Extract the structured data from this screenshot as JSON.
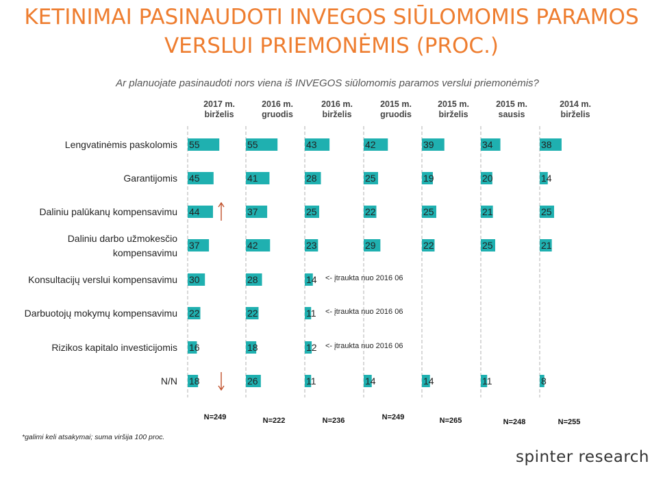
{
  "title_line1": "KETINIMAI PASINAUDOTI INVEGOS SIŪLOMOMIS PARAMOS",
  "title_line2": "VERSLUI PRIEMONĖMIS (PROC.)",
  "subtitle": "Ar planuojate pasinaudoti nors viena iš INVEGOS siūlomomis paramos verslui priemonėmis?",
  "footnote": "*galimi keli atsakymai; suma viršija 100 proc.",
  "logo": "spinter research",
  "colors": {
    "title": "#ee7d2f",
    "bar": "#1fb0b0",
    "arrow": "#c0502a",
    "axis": "#bfbfbf"
  },
  "chart_data": {
    "type": "bar",
    "orientation": "horizontal",
    "categories": [
      [
        "Lengvatinėmis paskolomis"
      ],
      [
        "Garantijomis"
      ],
      [
        "Daliniu palūkanų kompensavimu"
      ],
      [
        "Daliniu darbo užmokesčio",
        "kompensavimu"
      ],
      [
        "Konsultacijų verslui kompensavimu"
      ],
      [
        "Darbuotojų mokymų kompensavimu"
      ],
      [
        "Rizikos kapitalo investicijomis"
      ],
      [
        "N/N"
      ]
    ],
    "series": [
      {
        "name": [
          "2017 m.",
          "birželis"
        ],
        "n": "N=249",
        "values": [
          55,
          45,
          44,
          37,
          30,
          22,
          16,
          18
        ]
      },
      {
        "name": [
          "2016 m.",
          "gruodis"
        ],
        "n": "N=222",
        "values": [
          55,
          41,
          37,
          42,
          28,
          22,
          18,
          26
        ]
      },
      {
        "name": [
          "2016 m.",
          "birželis"
        ],
        "n": "N=236",
        "values": [
          43,
          28,
          25,
          23,
          14,
          11,
          12,
          11
        ]
      },
      {
        "name": [
          "2015 m.",
          "gruodis"
        ],
        "n": "N=249",
        "values": [
          42,
          25,
          22,
          29,
          null,
          null,
          null,
          14
        ]
      },
      {
        "name": [
          "2015 m.",
          "birželis"
        ],
        "n": "N=265",
        "values": [
          39,
          19,
          25,
          22,
          null,
          null,
          null,
          14
        ]
      },
      {
        "name": [
          "2015 m.",
          "sausis"
        ],
        "n": "N=248",
        "values": [
          34,
          20,
          21,
          25,
          null,
          null,
          null,
          11
        ]
      },
      {
        "name": [
          "2014 m.",
          "birželis"
        ],
        "n": "N=255",
        "values": [
          38,
          14,
          25,
          21,
          null,
          null,
          null,
          8
        ]
      }
    ],
    "annotations": [
      {
        "series": 2,
        "category": 4,
        "text": "<- įtraukta nuo 2016 06"
      },
      {
        "series": 2,
        "category": 5,
        "text": "<- įtraukta nuo 2016 06"
      },
      {
        "series": 2,
        "category": 6,
        "text": "<- įtraukta nuo 2016 06"
      }
    ],
    "trend_arrows": [
      {
        "series": 0,
        "category": 2,
        "direction": "up"
      },
      {
        "series": 0,
        "category": 7,
        "direction": "down"
      }
    ]
  }
}
